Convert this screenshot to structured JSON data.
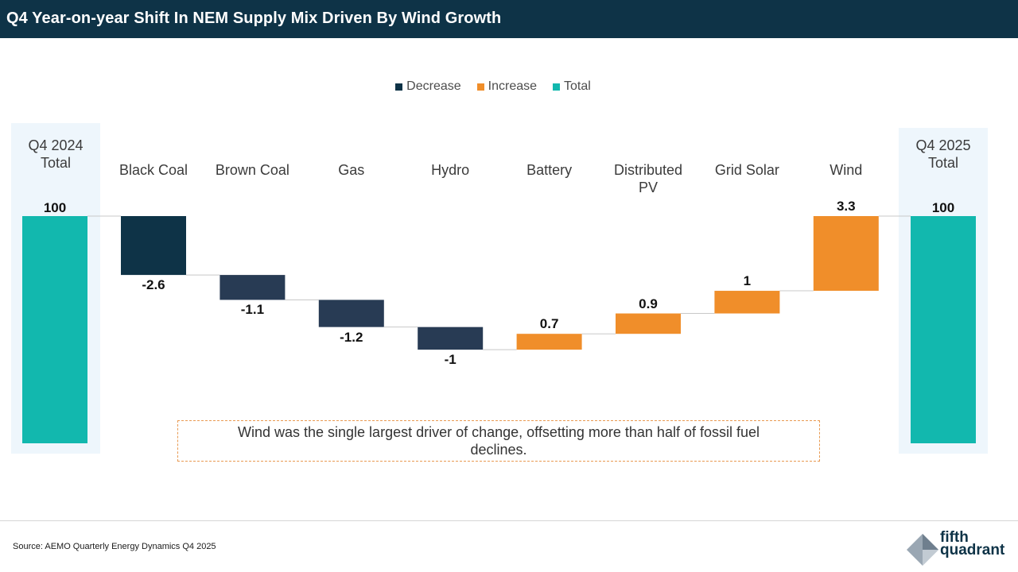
{
  "header": {
    "title": "Q4 Year-on-year Shift In NEM Supply Mix Driven By Wind Growth"
  },
  "chart_data": {
    "type": "waterfall",
    "title": "Q4 Year-on-year Shift In NEM Supply Mix Driven By Wind Growth",
    "legend": [
      {
        "label": "Decrease",
        "color": "#0e3347"
      },
      {
        "label": "Increase",
        "color": "#f08e2a"
      },
      {
        "label": "Total",
        "color": "#12b8ae"
      }
    ],
    "start": {
      "label": "Q4 2024 Total",
      "value": 100,
      "value_label": "100"
    },
    "steps": [
      {
        "label": "Black Coal",
        "value": -2.6,
        "value_label": "-2.6"
      },
      {
        "label": "Brown Coal",
        "value": -1.1,
        "value_label": "-1.1"
      },
      {
        "label": "Gas",
        "value": -1.2,
        "value_label": "-1.2"
      },
      {
        "label": "Hydro",
        "value": -1.0,
        "value_label": "-1"
      },
      {
        "label": "Battery",
        "value": 0.7,
        "value_label": "0.7"
      },
      {
        "label": "Distributed PV",
        "value": 0.9,
        "value_label": "0.9"
      },
      {
        "label": "Grid Solar",
        "value": 1.0,
        "value_label": "1"
      },
      {
        "label": "Wind",
        "value": 3.3,
        "value_label": "3.3"
      }
    ],
    "end": {
      "label": "Q4 2025 Total",
      "value": 100,
      "value_label": "100"
    },
    "colors": {
      "decrease": "#0e3347",
      "decrease_small": "#283b54",
      "increase": "#f08e2a",
      "total": "#12b8ae",
      "panel": "#eef6fc",
      "connector": "#c8c8c8"
    }
  },
  "annotation": {
    "text": "Wind was the single largest driver of change, offsetting more than half of fossil fuel declines."
  },
  "footer": {
    "source": "Source: AEMO Quarterly Energy Dynamics Q4 2025",
    "logo_word_1": "fifth",
    "logo_word_2": "quadrant"
  }
}
